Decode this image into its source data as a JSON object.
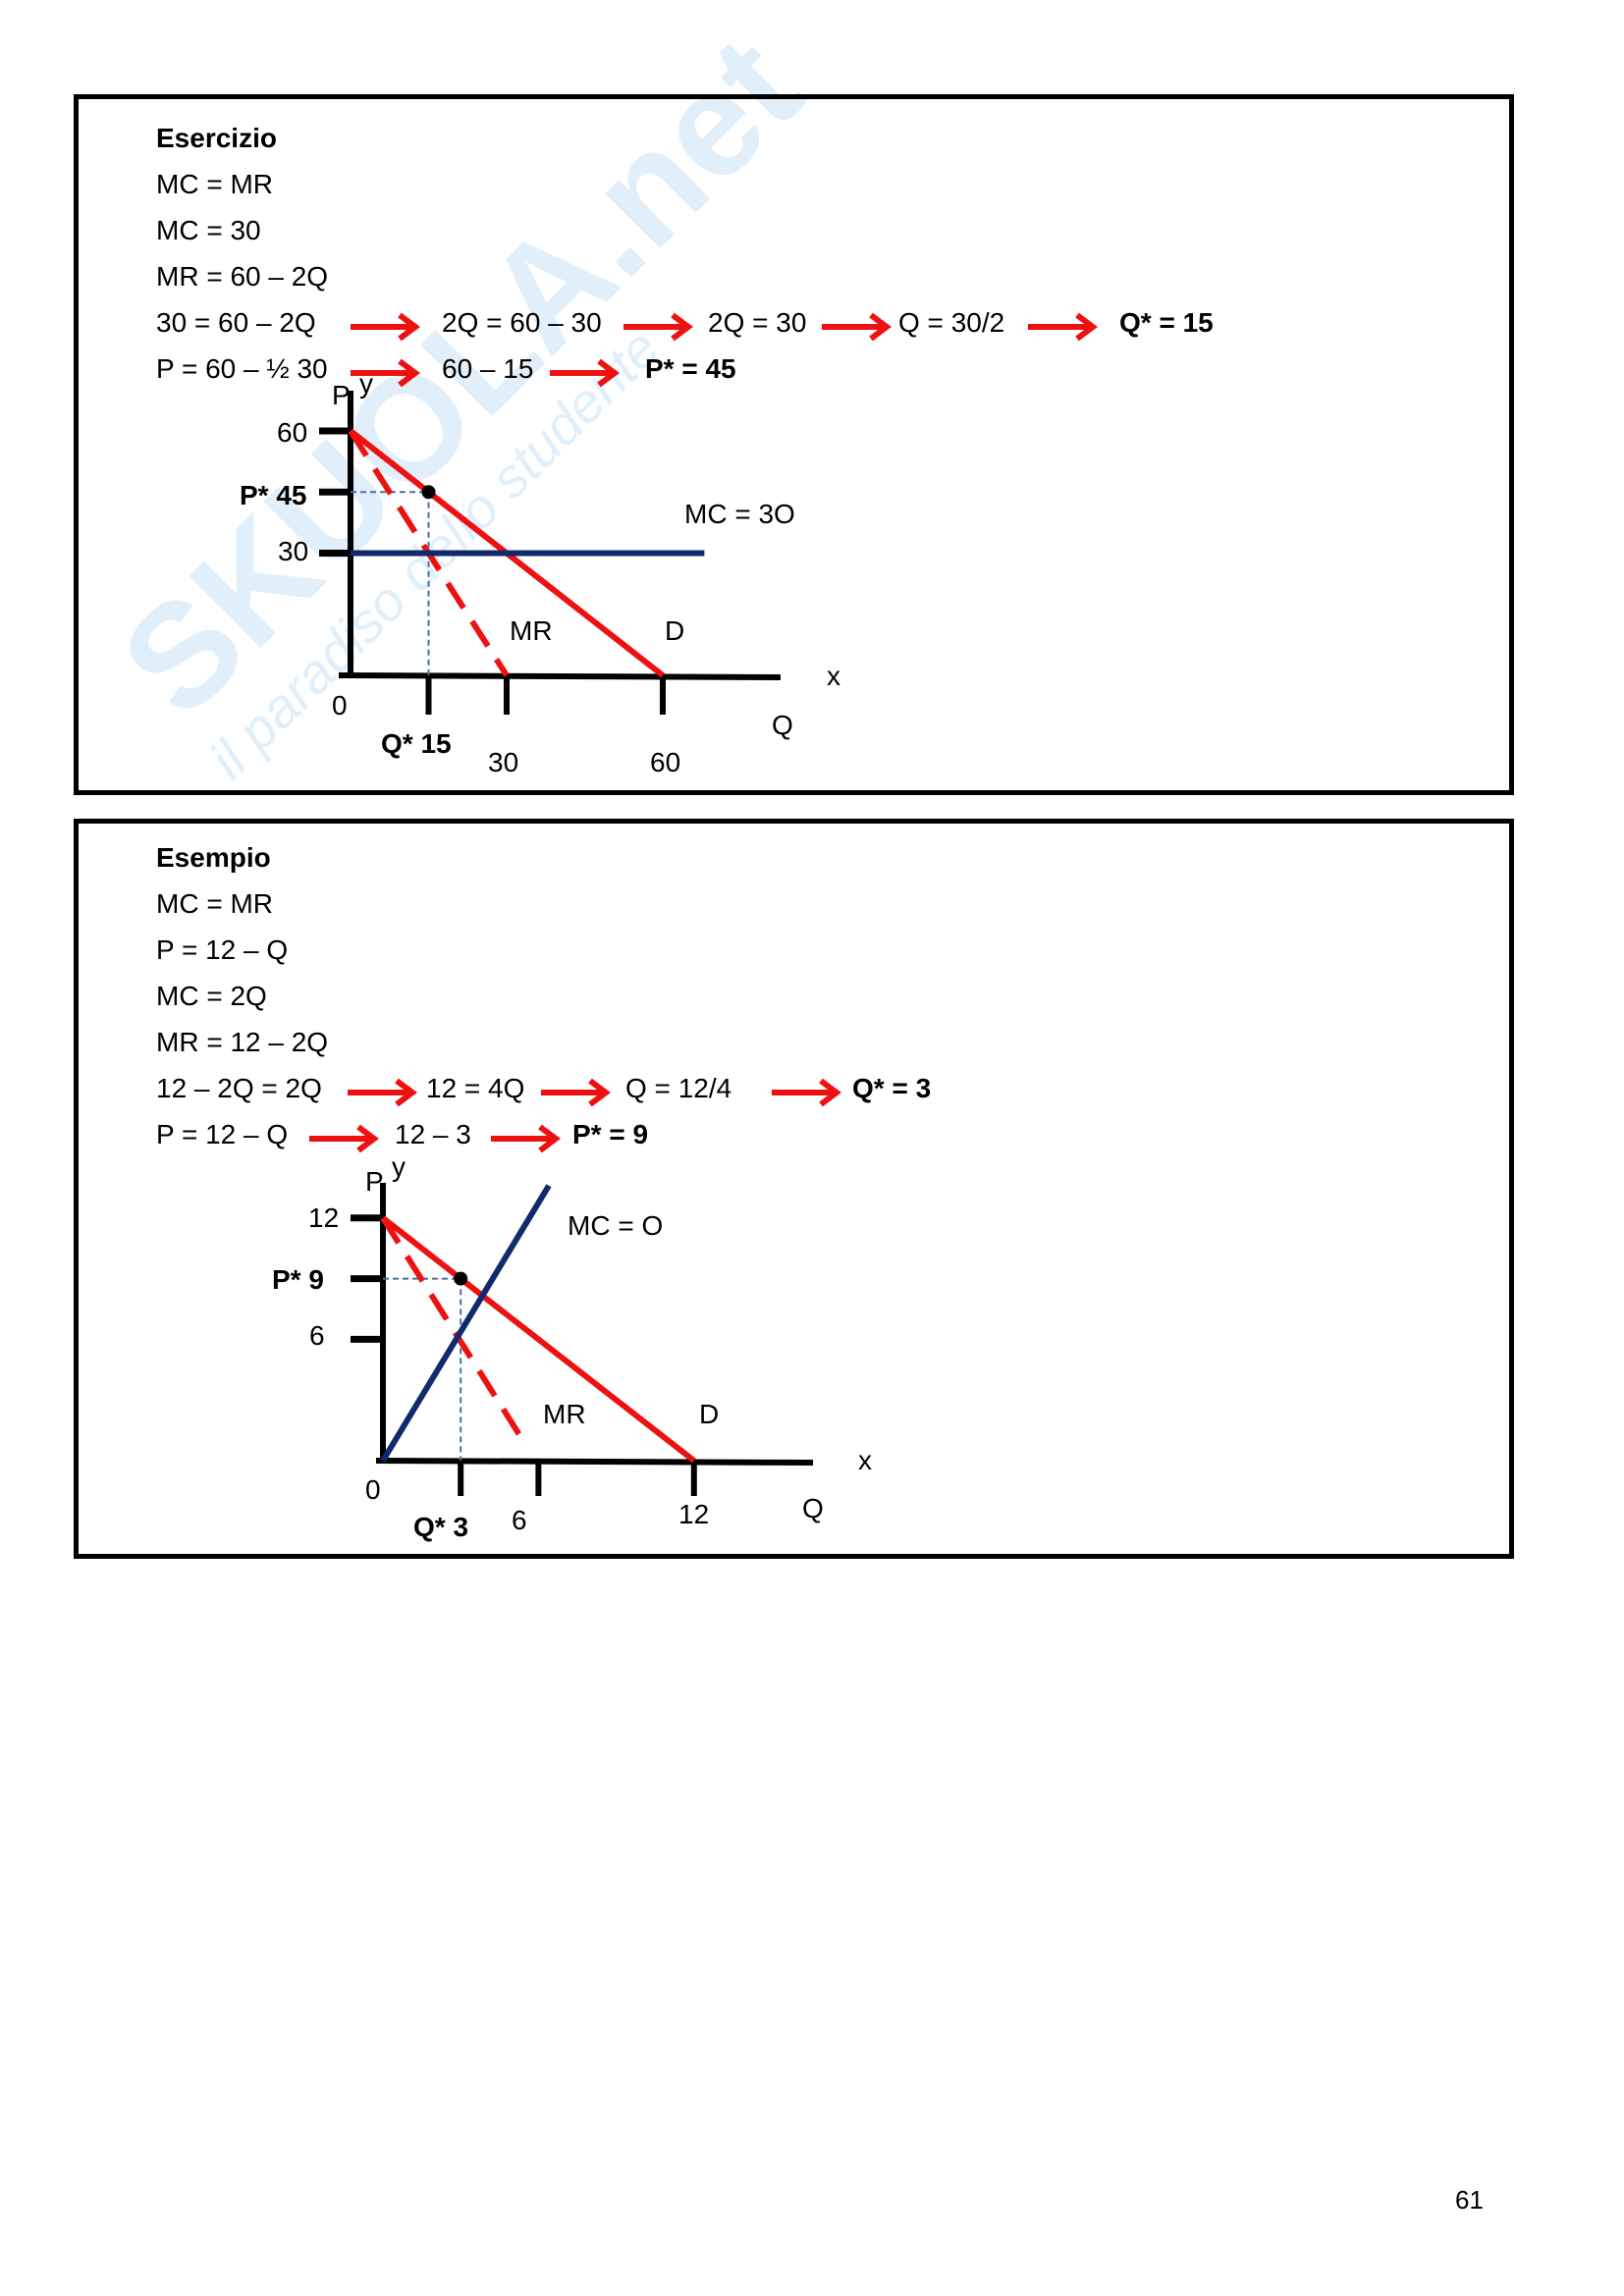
{
  "watermark": {
    "logo": "SKUOLA.net",
    "tagline": "il paradiso dello studente"
  },
  "exercise": {
    "title": "Esercizio",
    "lines": [
      "MC = MR",
      "MC = 30",
      "MR = 60 – 2Q"
    ],
    "step1": [
      "30 =  60 – 2Q",
      "2Q = 60 – 30",
      "2Q = 30",
      "Q = 30/2",
      "Q* = 15"
    ],
    "step2": [
      "P = 60 – ½ 30",
      "60 – 15",
      "P* = 45"
    ]
  },
  "example": {
    "title": "Esempio",
    "lines": [
      "MC = MR",
      "P = 12 – Q",
      "MC = 2Q",
      "MR = 12 – 2Q"
    ],
    "step1": [
      "12 – 2Q = 2Q",
      "12 = 4Q",
      "Q = 12/4",
      "Q* = 3"
    ],
    "step2": [
      "P = 12 – Q",
      "12 – 3",
      "P* =  9"
    ]
  },
  "colors": {
    "arrow": "#ee1111",
    "demand": "#ee1111",
    "mr": "#ee1111",
    "mc": "#102a6b",
    "axis": "#000000",
    "guide": "#4a6fa5"
  },
  "chart_data": [
    {
      "type": "line",
      "ylabel": "P",
      "ylabel_alt": "y",
      "xlabel": "Q",
      "xlabel_alt": "x",
      "origin_label": "0",
      "y_ticks": [
        {
          "value": 60,
          "label": "60"
        },
        {
          "value": 45,
          "label": "P* 45"
        },
        {
          "value": 30,
          "label": "30"
        }
      ],
      "x_ticks": [
        {
          "value": 15,
          "label": "Q* 15"
        },
        {
          "value": 30,
          "label": "30"
        },
        {
          "value": 60,
          "label": "60"
        }
      ],
      "series": [
        {
          "name": "D",
          "style": "solid",
          "points": [
            [
              0,
              60
            ],
            [
              60,
              0
            ]
          ]
        },
        {
          "name": "MR",
          "style": "dashed",
          "points": [
            [
              0,
              60
            ],
            [
              30,
              0
            ]
          ]
        },
        {
          "name": "MC = 3O",
          "style": "solid",
          "points": [
            [
              0,
              30
            ],
            [
              68,
              30
            ]
          ]
        }
      ],
      "equilibrium": [
        15,
        45
      ]
    },
    {
      "type": "line",
      "ylabel": "P",
      "ylabel_alt": "y",
      "xlabel": "Q",
      "xlabel_alt": "x",
      "origin_label": "0",
      "y_ticks": [
        {
          "value": 12,
          "label": "12"
        },
        {
          "value": 9,
          "label": "P* 9"
        },
        {
          "value": 6,
          "label": "6"
        }
      ],
      "x_ticks": [
        {
          "value": 3,
          "label": "Q* 3"
        },
        {
          "value": 6,
          "label": "6"
        },
        {
          "value": 12,
          "label": "12"
        }
      ],
      "series": [
        {
          "name": "D",
          "style": "solid",
          "points": [
            [
              0,
              12
            ],
            [
              12,
              0
            ]
          ]
        },
        {
          "name": "MR",
          "style": "dashed",
          "points": [
            [
              0,
              12
            ],
            [
              5.5,
              0.8
            ]
          ]
        },
        {
          "name": "MC = O",
          "style": "solid",
          "points": [
            [
              0,
              0
            ],
            [
              6.4,
              13.6
            ]
          ]
        }
      ],
      "equilibrium": [
        3,
        9
      ]
    }
  ],
  "page_number": "61"
}
